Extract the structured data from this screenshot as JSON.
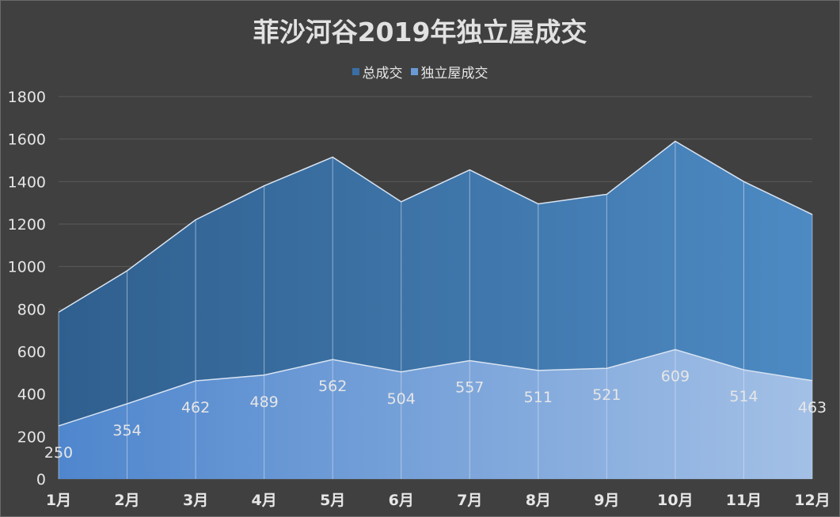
{
  "chart_data": {
    "type": "area",
    "title": "菲沙河谷2019年独立屋成交",
    "categories": [
      "1月",
      "2月",
      "3月",
      "4月",
      "5月",
      "6月",
      "7月",
      "8月",
      "9月",
      "10月",
      "11月",
      "12月"
    ],
    "series": [
      {
        "name": "总成交",
        "values": [
          785,
          980,
          1220,
          1380,
          1515,
          1305,
          1455,
          1295,
          1340,
          1590,
          1400,
          1245
        ]
      },
      {
        "name": "独立屋成交",
        "values": [
          250,
          354,
          462,
          489,
          562,
          504,
          557,
          511,
          521,
          609,
          514,
          463
        ]
      }
    ],
    "data_labels_series": "独立屋成交",
    "ylim": [
      0,
      1800
    ],
    "yticks": [
      0,
      200,
      400,
      600,
      800,
      1000,
      1200,
      1400,
      1600,
      1800
    ],
    "xlabel": "",
    "ylabel": "",
    "grid": true,
    "legend_position": "top-center",
    "colors": {
      "total_left": "#2f5f8e",
      "total_right": "#4d8ac3",
      "detached_left": "#4f86cd",
      "detached_right": "#a3c0e6",
      "outline": "#d9e4f2",
      "grid": "#5a5a5a",
      "background": "#404040"
    }
  }
}
